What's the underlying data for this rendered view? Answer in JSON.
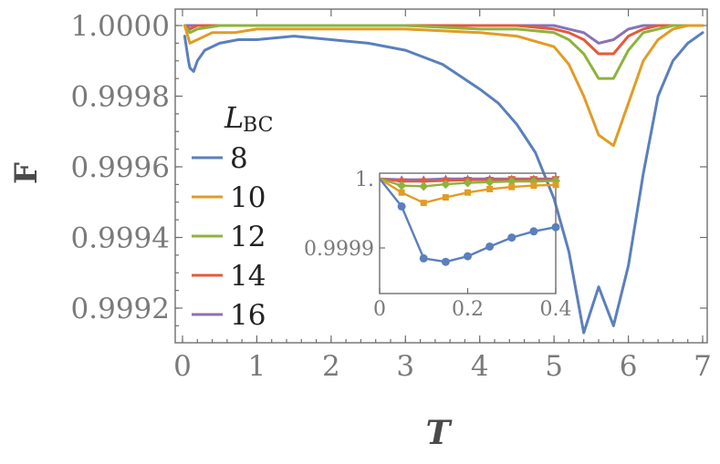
{
  "chart_data": [
    {
      "type": "line",
      "xlabel": "T",
      "ylabel": "F",
      "xlim": [
        0,
        7
      ],
      "ylim": [
        0.99915,
        1.00003
      ],
      "x_ticks": [
        "0",
        "1",
        "2",
        "3",
        "4",
        "5",
        "6",
        "7"
      ],
      "y_ticks": [
        "1.0000",
        "0.9998",
        "0.9996",
        "0.9994",
        "0.9992"
      ],
      "grid": false,
      "legend": {
        "title": "L",
        "title_subscript": "BC",
        "placement": "left-middle"
      },
      "series": [
        {
          "name": "8",
          "color": "#5b7fbd",
          "x": [
            0.03,
            0.08,
            0.1,
            0.15,
            0.2,
            0.3,
            0.5,
            0.75,
            1.0,
            1.5,
            2.0,
            2.5,
            3.0,
            3.5,
            4.0,
            4.25,
            4.5,
            4.75,
            5.0,
            5.2,
            5.4,
            5.6,
            5.8,
            6.0,
            6.2,
            6.4,
            6.6,
            6.8,
            7.0
          ],
          "y": [
            0.99997,
            0.9999,
            0.99988,
            0.99987,
            0.9999,
            0.99993,
            0.99995,
            0.99996,
            0.99996,
            0.99997,
            0.99996,
            0.99995,
            0.99993,
            0.99989,
            0.99982,
            0.99978,
            0.99972,
            0.99964,
            0.99951,
            0.99936,
            0.99913,
            0.99926,
            0.99915,
            0.99932,
            0.99958,
            0.9998,
            0.9999,
            0.99995,
            0.99998
          ]
        },
        {
          "name": "10",
          "color": "#e19c25",
          "x": [
            0.03,
            0.1,
            0.2,
            0.4,
            0.7,
            1.0,
            2.0,
            3.0,
            4.0,
            4.5,
            5.0,
            5.2,
            5.4,
            5.6,
            5.8,
            6.0,
            6.2,
            6.4,
            6.6,
            6.8,
            7.0
          ],
          "y": [
            1.0,
            0.99995,
            0.99996,
            0.99998,
            0.99998,
            0.99999,
            0.99999,
            0.99999,
            0.99998,
            0.99997,
            0.99994,
            0.99989,
            0.9998,
            0.99969,
            0.99966,
            0.99978,
            0.9999,
            0.99996,
            0.99999,
            1.0,
            1.0
          ]
        },
        {
          "name": "12",
          "color": "#8db33c",
          "x": [
            0.03,
            0.1,
            0.2,
            0.5,
            1.0,
            2.0,
            3.0,
            4.0,
            4.5,
            5.0,
            5.2,
            5.4,
            5.6,
            5.8,
            6.0,
            6.2,
            6.4,
            6.6,
            7.0
          ],
          "y": [
            1.0,
            0.99998,
            0.99999,
            1.0,
            1.0,
            1.0,
            1.0,
            0.99999,
            0.99999,
            0.99998,
            0.99996,
            0.99992,
            0.99985,
            0.99985,
            0.99993,
            0.99998,
            0.99999,
            1.0,
            1.0
          ]
        },
        {
          "name": "14",
          "color": "#e35a3b",
          "x": [
            0.03,
            0.1,
            0.2,
            0.5,
            1.0,
            2.0,
            3.0,
            4.0,
            4.5,
            5.0,
            5.2,
            5.4,
            5.6,
            5.8,
            6.0,
            6.2,
            6.4,
            6.6,
            7.0
          ],
          "y": [
            1.0,
            0.99999,
            1.0,
            1.0,
            1.0,
            1.0,
            1.0,
            1.0,
            1.0,
            0.99999,
            0.99998,
            0.99996,
            0.99992,
            0.99992,
            0.99997,
            0.99999,
            1.0,
            1.0,
            1.0
          ]
        },
        {
          "name": "16",
          "color": "#8a71b5",
          "x": [
            0.03,
            0.1,
            0.2,
            0.5,
            1.0,
            2.0,
            3.0,
            4.0,
            4.5,
            5.0,
            5.2,
            5.4,
            5.6,
            5.8,
            6.0,
            6.2,
            6.4,
            7.0
          ],
          "y": [
            1.0,
            1.0,
            1.0,
            1.0,
            1.0,
            1.0,
            1.0,
            1.0,
            1.0,
            1.0,
            0.99999,
            0.99998,
            0.99995,
            0.99996,
            0.99999,
            1.0,
            1.0,
            1.0
          ]
        }
      ]
    },
    {
      "type": "line",
      "inset": true,
      "xlim": [
        0,
        0.4
      ],
      "ylim": [
        0.99986,
        1.000005
      ],
      "x_ticks": [
        "0",
        "0.2",
        "0.4"
      ],
      "y_ticks": [
        "1.",
        "0.9999"
      ],
      "markers": [
        "circle",
        "square",
        "diamond",
        "triangle-down",
        "triangle-up"
      ],
      "series": [
        {
          "name": "8",
          "color": "#5b7fbd",
          "x": [
            0.0,
            0.05,
            0.1,
            0.15,
            0.2,
            0.25,
            0.3,
            0.35,
            0.4
          ],
          "y": [
            1.0,
            0.99996,
            0.999885,
            0.99988,
            0.999888,
            0.999902,
            0.999915,
            0.999924,
            0.99993
          ]
        },
        {
          "name": "10",
          "color": "#e19c25",
          "x": [
            0.0,
            0.05,
            0.1,
            0.15,
            0.2,
            0.25,
            0.3,
            0.35,
            0.4
          ],
          "y": [
            1.0,
            0.99998,
            0.999965,
            0.999973,
            0.99998,
            0.999985,
            0.999988,
            0.99999,
            0.999991
          ]
        },
        {
          "name": "12",
          "color": "#8db33c",
          "x": [
            0.0,
            0.05,
            0.1,
            0.15,
            0.2,
            0.25,
            0.3,
            0.35,
            0.4
          ],
          "y": [
            1.0,
            0.99999,
            0.999989,
            0.999992,
            0.999994,
            0.999995,
            0.999996,
            0.999996,
            0.999997
          ]
        },
        {
          "name": "14",
          "color": "#e35a3b",
          "x": [
            0.0,
            0.05,
            0.1,
            0.15,
            0.2,
            0.25,
            0.3,
            0.35,
            0.4
          ],
          "y": [
            1.0,
            0.999996,
            0.999996,
            0.999997,
            0.999998,
            0.999998,
            0.999999,
            0.999999,
            0.999999
          ]
        },
        {
          "name": "16",
          "color": "#8a71b5",
          "x": [
            0.0,
            0.05,
            0.1,
            0.15,
            0.2,
            0.25,
            0.3,
            0.35,
            0.4
          ],
          "y": [
            1.0,
            0.999999,
            0.999999,
            1.0,
            1.0,
            1.0,
            1.0,
            1.0,
            1.0
          ]
        }
      ]
    }
  ]
}
